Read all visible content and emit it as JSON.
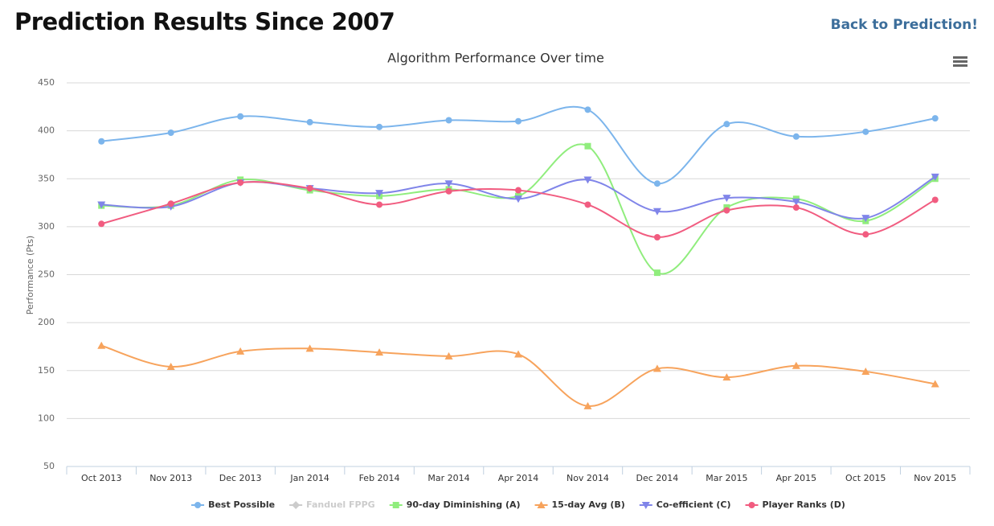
{
  "header": {
    "title": "Prediction Results Since 2007",
    "link": "Back to Prediction!"
  },
  "chart_data": {
    "type": "line",
    "title": "Algorithm Performance Over time",
    "y_label": "Performance (Pts)",
    "categories": [
      "Oct 2013",
      "Nov 2013",
      "Dec 2013",
      "Jan 2014",
      "Feb 2014",
      "Mar 2014",
      "Apr 2014",
      "Nov 2014",
      "Dec 2014",
      "Mar 2015",
      "Apr 2015",
      "Oct 2015",
      "Nov 2015"
    ],
    "ylim": [
      50,
      450
    ],
    "yticks": [
      50,
      100,
      150,
      200,
      250,
      300,
      350,
      400,
      450
    ],
    "grid": true,
    "legend": "bottom",
    "smooth": true,
    "series": [
      {
        "name": "Best Possible",
        "color": "#7cb5ec",
        "marker": "circle",
        "values": [
          389,
          398,
          415,
          409,
          404,
          411,
          410,
          422,
          345,
          407,
          394,
          399,
          413
        ]
      },
      {
        "name": "Fanduel FPPG",
        "color": "#cccccc",
        "marker": "diamond",
        "visible": false
      },
      {
        "name": "90-day Diminishing (A)",
        "color": "#90ed7d",
        "marker": "square",
        "values": [
          322,
          322,
          349,
          338,
          332,
          339,
          332,
          384,
          252,
          320,
          329,
          306,
          350
        ]
      },
      {
        "name": "15-day Avg (B)",
        "color": "#f7a35c",
        "marker": "triangle",
        "values": [
          176,
          154,
          170,
          173,
          169,
          165,
          167,
          113,
          152,
          143,
          155,
          149,
          136
        ]
      },
      {
        "name": "Co-efficient (C)",
        "color": "#8085e9",
        "marker": "triangle-down",
        "values": [
          323,
          321,
          346,
          340,
          335,
          345,
          329,
          349,
          316,
          330,
          326,
          309,
          352
        ]
      },
      {
        "name": "Player Ranks (D)",
        "color": "#f15c80",
        "marker": "circle",
        "values": [
          303,
          324,
          346,
          340,
          323,
          337,
          338,
          323,
          289,
          317,
          320,
          292,
          328
        ]
      }
    ]
  }
}
